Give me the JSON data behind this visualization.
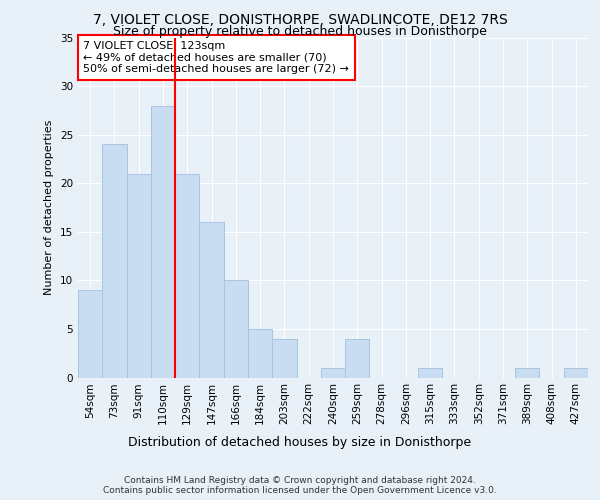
{
  "title": "7, VIOLET CLOSE, DONISTHORPE, SWADLINCOTE, DE12 7RS",
  "subtitle": "Size of property relative to detached houses in Donisthorpe",
  "xlabel": "Distribution of detached houses by size in Donisthorpe",
  "ylabel": "Number of detached properties",
  "categories": [
    "54sqm",
    "73sqm",
    "91sqm",
    "110sqm",
    "129sqm",
    "147sqm",
    "166sqm",
    "184sqm",
    "203sqm",
    "222sqm",
    "240sqm",
    "259sqm",
    "278sqm",
    "296sqm",
    "315sqm",
    "333sqm",
    "352sqm",
    "371sqm",
    "389sqm",
    "408sqm",
    "427sqm"
  ],
  "values": [
    9,
    24,
    21,
    28,
    21,
    16,
    10,
    5,
    4,
    0,
    1,
    4,
    0,
    0,
    1,
    0,
    0,
    0,
    1,
    0,
    1
  ],
  "bar_color": "#c8ddf2",
  "bar_edge_color": "#aac4e0",
  "vline_x_index": 3,
  "vline_color": "red",
  "ylim": [
    0,
    35
  ],
  "yticks": [
    0,
    5,
    10,
    15,
    20,
    25,
    30,
    35
  ],
  "annotation_text_line1": "7 VIOLET CLOSE: 123sqm",
  "annotation_text_line2": "← 49% of detached houses are smaller (70)",
  "annotation_text_line3": "50% of semi-detached houses are larger (72) →",
  "annotation_box_color": "#ffffff",
  "annotation_box_edge": "red",
  "footer": "Contains HM Land Registry data © Crown copyright and database right 2024.\nContains public sector information licensed under the Open Government Licence v3.0.",
  "bg_color": "#e8f0f8",
  "plot_bg_color": "#e8f0f8",
  "grid_color": "#ffffff",
  "title_fontsize": 10,
  "subtitle_fontsize": 9,
  "xlabel_fontsize": 9,
  "ylabel_fontsize": 8,
  "tick_fontsize": 7.5,
  "annotation_fontsize": 8,
  "footer_fontsize": 6.5
}
